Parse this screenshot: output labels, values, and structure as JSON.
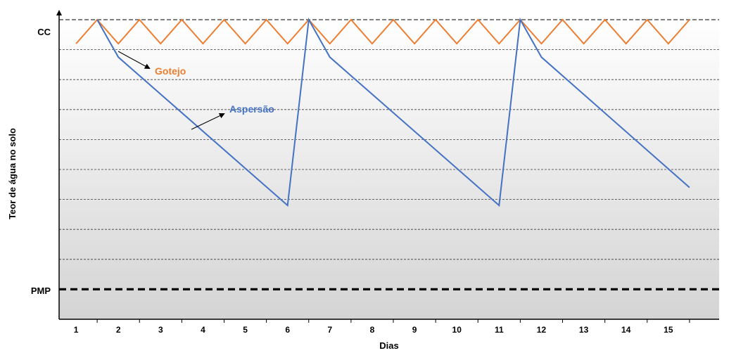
{
  "chart_data": {
    "type": "line",
    "xlabel": "Dias",
    "ylabel": "Teor de água no solo",
    "x_ticks": [
      1,
      2,
      3,
      4,
      5,
      6,
      7,
      8,
      9,
      10,
      11,
      12,
      13,
      14,
      15
    ],
    "y_levels": {
      "top": "CC",
      "bottom": "PMP"
    },
    "xlim": [
      0.6,
      16.2
    ],
    "ylim": [
      -1,
      9
    ],
    "grid": "horizontal dashed",
    "series": [
      {
        "name": "Gotejo",
        "color": "#ED7D31",
        "x": [
          1,
          1.5,
          2,
          2.5,
          3,
          3.5,
          4,
          4.5,
          5,
          5.5,
          6,
          6.5,
          7,
          7.5,
          8,
          8.5,
          9,
          9.5,
          10,
          10.5,
          11,
          11.5,
          12,
          12.5,
          13,
          13.5,
          14,
          14.5,
          15,
          15.5
        ],
        "y": [
          8.2,
          9,
          8.2,
          9,
          8.2,
          9,
          8.2,
          9,
          8.2,
          9,
          8.2,
          9,
          8.2,
          9,
          8.2,
          9,
          8.2,
          9,
          8.2,
          9,
          8.2,
          9,
          8.2,
          9,
          8.2,
          9,
          8.2,
          9,
          8.2,
          9
        ]
      },
      {
        "name": "Aspersão",
        "color": "#4472C4",
        "x": [
          1.5,
          2,
          6,
          6.5,
          7,
          11,
          11.5,
          12,
          15.5
        ],
        "y": [
          9,
          7.75,
          2.8,
          9,
          7.75,
          2.8,
          9,
          7.75,
          3.4
        ]
      }
    ],
    "annotations": [
      {
        "text": "Gotejo",
        "series": 0
      },
      {
        "text": "Aspersão",
        "series": 1
      }
    ]
  }
}
